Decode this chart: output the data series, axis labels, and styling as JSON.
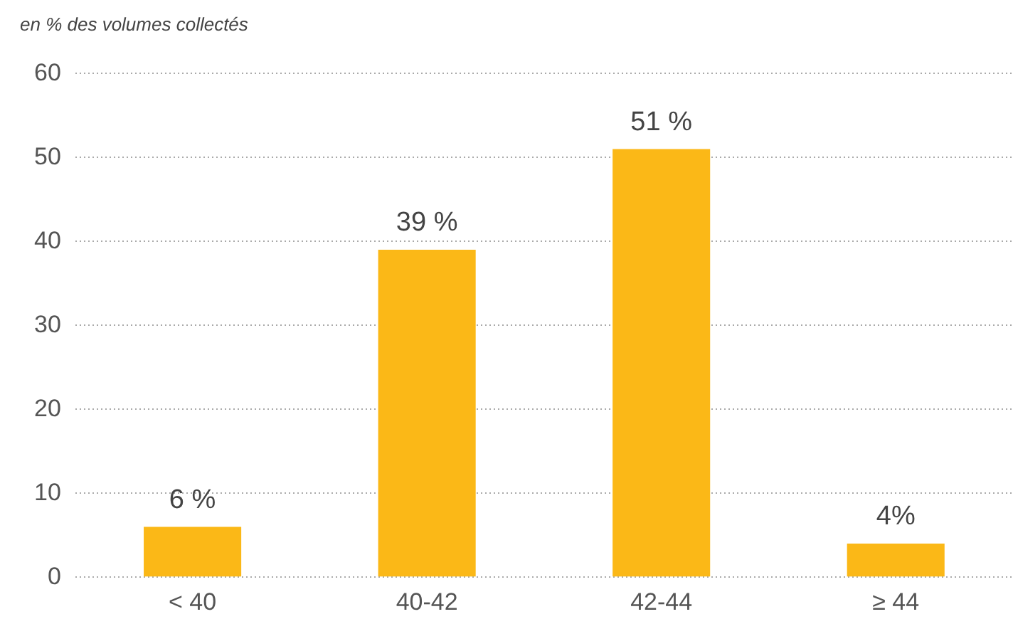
{
  "chart_data": {
    "type": "bar",
    "ylabel": "en % des volumes collectés",
    "categories": [
      "< 40",
      "40-42",
      "42-44",
      "≥ 44"
    ],
    "values": [
      6,
      39,
      51,
      4
    ],
    "color": "#fbb817",
    "value_labels": [
      "6 %",
      "39 %",
      "51 %",
      "4%"
    ],
    "ylim": [
      0,
      60
    ],
    "yticks": [
      0,
      10,
      20,
      30,
      40,
      50,
      60
    ],
    "grid": "y"
  }
}
